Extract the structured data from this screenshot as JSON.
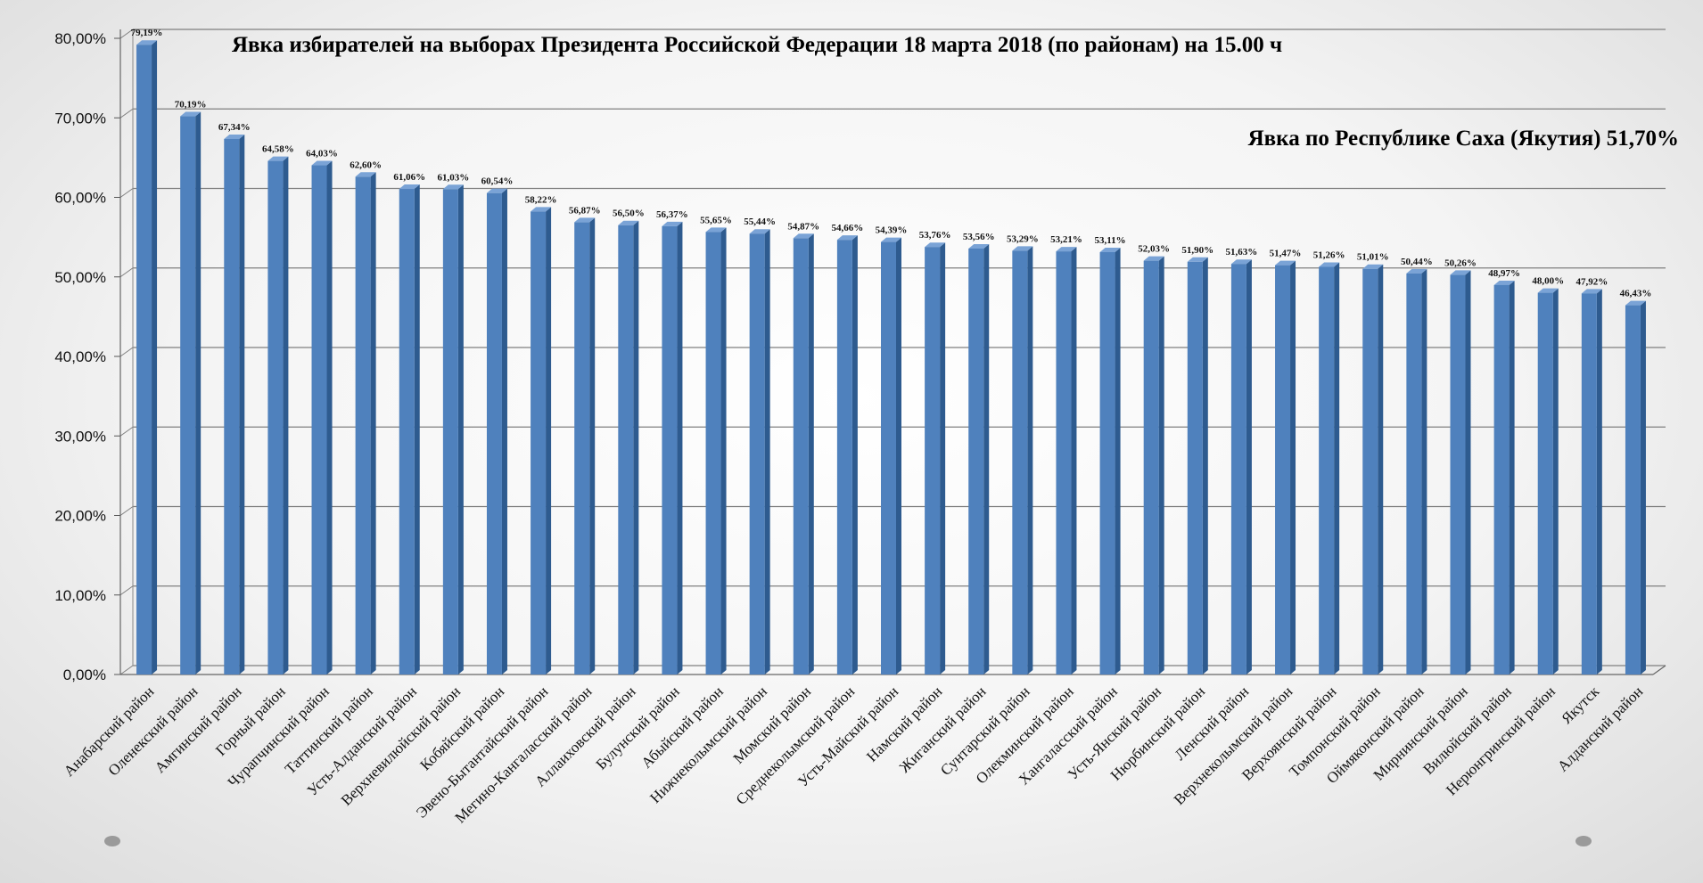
{
  "chart_data": {
    "type": "bar",
    "title": "Явка избирателей на выборах Президента Российской Федерации 18 марта 2018  (по районам) на 15.00 ч",
    "subtitle": "Явка по Республике Саха (Якутия) 51,70%",
    "xlabel": "",
    "ylabel": "",
    "ylim": [
      0,
      80
    ],
    "yticks": [
      "0,00%",
      "10,00%",
      "20,00%",
      "30,00%",
      "40,00%",
      "50,00%",
      "60,00%",
      "70,00%",
      "80,00%"
    ],
    "grid": true,
    "colors": {
      "bar": "#4f81bd",
      "bar_side": "#2e5b8f",
      "bar_top": "#7aa3d6",
      "grid": "#7f7f7f"
    },
    "categories": [
      "Анабарский район",
      "Оленекский район",
      "Амгинский район",
      "Горный район",
      "Чурапчинский район",
      "Таттинский район",
      "Усть-Алданский район",
      "Верхневилюйский район",
      "Кобяйский район",
      "Эвено-Бытантайский район",
      "Мегино-Кангаласский район",
      "Аллаиховский район",
      "Булунский район",
      "Абыйский район",
      "Нижнеколымский район",
      "Момский район",
      "Среднеколымский район",
      "Усть-Майский район",
      "Намский район",
      "Жиганский район",
      "Сунтарский район",
      "Олекминский район",
      "Хангаласский район",
      "Усть-Янский район",
      "Нюрбинский район",
      "Ленский район",
      "Верхнеколымский район",
      "Верхоянский район",
      "Томпонский район",
      "Оймяконский район",
      "Мирнинский район",
      "Вилюйский район",
      "Нерюнгринский район",
      "Якутск",
      "Алданский район"
    ],
    "values": [
      79.19,
      70.19,
      67.34,
      64.58,
      64.03,
      62.6,
      61.06,
      61.03,
      60.54,
      58.22,
      56.87,
      56.5,
      56.37,
      55.65,
      55.44,
      54.87,
      54.66,
      54.39,
      53.76,
      53.56,
      53.29,
      53.21,
      53.11,
      52.03,
      51.9,
      51.63,
      51.47,
      51.26,
      51.01,
      50.44,
      50.26,
      48.97,
      48.0,
      47.92,
      46.43
    ],
    "value_labels": [
      "79,19%",
      "70,19%",
      "67,34%",
      "64,58%",
      "64,03%",
      "62,60%",
      "61,06%",
      "61,03%",
      "60,54%",
      "58,22%",
      "56,87%",
      "56,50%",
      "56,37%",
      "55,65%",
      "55,44%",
      "54,87%",
      "54,66%",
      "54,39%",
      "53,76%",
      "53,56%",
      "53,29%",
      "53,21%",
      "53,11%",
      "52,03%",
      "51,90%",
      "51,63%",
      "51,47%",
      "51,26%",
      "51,01%",
      "50,44%",
      "50,26%",
      "48,97%",
      "48,00%",
      "47,92%",
      "46,43%"
    ]
  }
}
